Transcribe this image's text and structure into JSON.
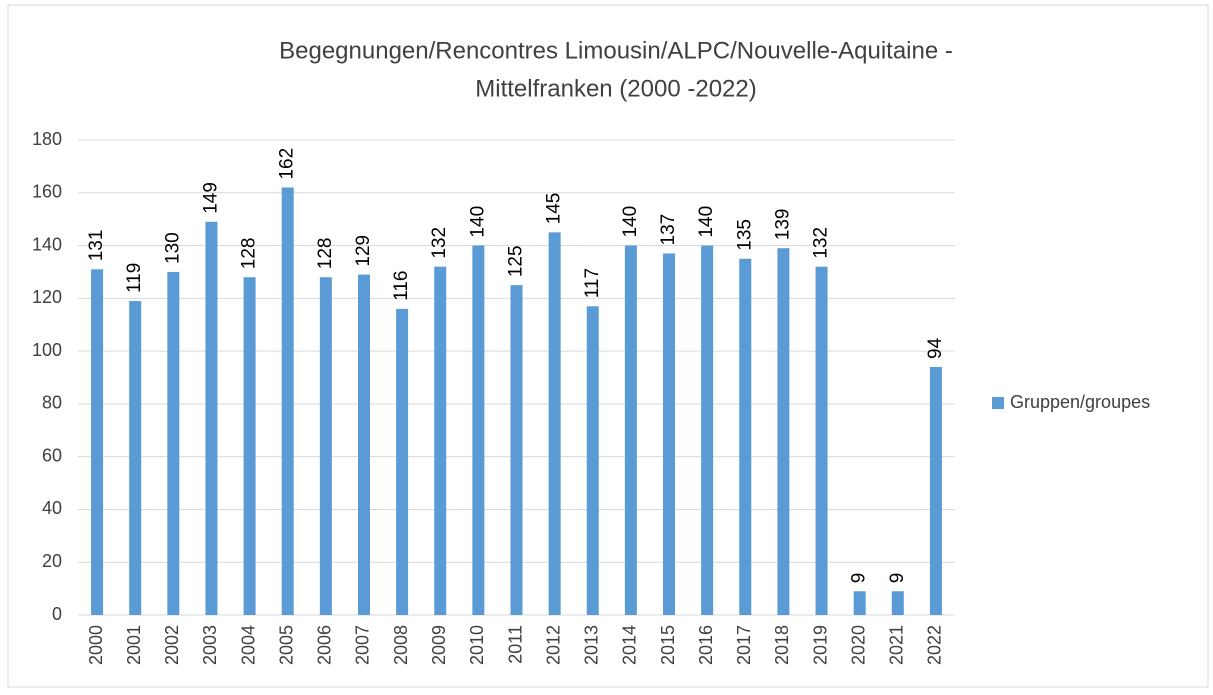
{
  "chart_data": {
    "type": "bar",
    "title": [
      "Begegnungen/Rencontres Limousin/ALPC/Nouvelle-Aquitaine -",
      "Mittelfranken (2000 -2022)"
    ],
    "categories": [
      "2000",
      "2001",
      "2002",
      "2003",
      "2004",
      "2005",
      "2006",
      "2007",
      "2008",
      "2009",
      "2010",
      "2011",
      "2012",
      "2013",
      "2014",
      "2015",
      "2016",
      "2017",
      "2018",
      "2019",
      "2020",
      "2021",
      "2022"
    ],
    "series": [
      {
        "name": "Gruppen/groupes",
        "color": "#5b9bd5",
        "values": [
          131,
          119,
          130,
          149,
          128,
          162,
          128,
          129,
          116,
          132,
          140,
          125,
          145,
          117,
          140,
          137,
          140,
          135,
          139,
          132,
          9,
          9,
          94
        ]
      }
    ],
    "ylim": [
      0,
      180
    ],
    "yticks": [
      0,
      20,
      40,
      60,
      80,
      100,
      120,
      140,
      160,
      180
    ],
    "grid": true,
    "legend": "right"
  }
}
